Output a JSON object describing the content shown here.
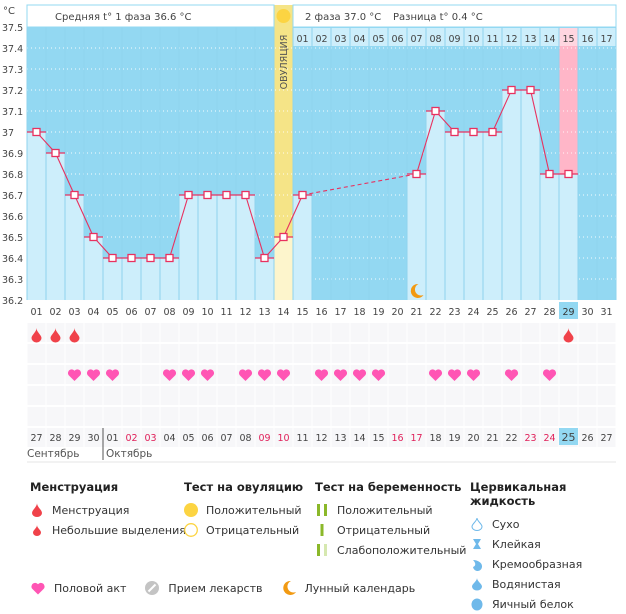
{
  "header": {
    "unit": "°C",
    "phase1_label": "Средняя t° 1 фаза 36.6 °C",
    "phase2_label": "2 фаза 37.0 °C",
    "diff_label": "Разница t° 0.4 °C",
    "ovulation_label": "ОВУЛЯЦИЯ"
  },
  "colors": {
    "background": "#93d8f2",
    "bar_fill": "#cdeefb",
    "line": "#e8315f",
    "ovulation_top": "#f5e487",
    "ovulation_bar": "#fdf5cc",
    "period_highlight": "#ffb6c8",
    "today": "#93d8f2",
    "heart": "#ff55b4",
    "drop": "#f0424a",
    "holiday_text": "#e0215a"
  },
  "chart_data": {
    "type": "line",
    "title": "",
    "xlabel": "",
    "ylabel": "°C",
    "ylim": [
      36.2,
      37.5
    ],
    "yticks": [
      "37.5",
      "37.4",
      "37.3",
      "37.2",
      "37.1",
      "37",
      "36.9",
      "36.8",
      "36.7",
      "36.6",
      "36.5",
      "36.4",
      "36.3",
      "36.2"
    ],
    "cycle_days": [
      "01",
      "02",
      "03",
      "04",
      "05",
      "06",
      "07",
      "08",
      "09",
      "10",
      "11",
      "12",
      "13",
      "14",
      "15",
      "16",
      "17",
      "18",
      "19",
      "20",
      "21",
      "22",
      "23",
      "24",
      "25",
      "26",
      "27",
      "28",
      "29",
      "30",
      "31"
    ],
    "phase2_day_labels": [
      "01",
      "02",
      "03",
      "04",
      "05",
      "06",
      "07",
      "08",
      "09",
      "10",
      "11",
      "12",
      "13",
      "14",
      "15",
      "16",
      "17"
    ],
    "phase2_start_day": 15,
    "phase2_highlight_label": "15",
    "ovulation_day": 14,
    "series": [
      {
        "name": "Базальная температура",
        "values": [
          37.0,
          36.9,
          36.7,
          36.5,
          36.4,
          36.4,
          36.4,
          36.4,
          36.7,
          36.7,
          36.7,
          36.7,
          36.4,
          36.5,
          36.7,
          null,
          null,
          null,
          null,
          null,
          36.8,
          37.1,
          37.0,
          37.0,
          37.0,
          37.2,
          37.2,
          36.8,
          36.8,
          null,
          null
        ]
      }
    ],
    "dashed_gap": [
      15,
      21
    ],
    "period_highlight_day": 29,
    "today_day": 29,
    "moon_day": 21,
    "menstruation_days": [
      1,
      2,
      3,
      29
    ],
    "intercourse_days": [
      3,
      4,
      5,
      8,
      9,
      10,
      12,
      13,
      14,
      16,
      17,
      18,
      19,
      22,
      23,
      24,
      26,
      28
    ],
    "calendar_dates": [
      "27",
      "28",
      "29",
      "30",
      "01",
      "02",
      "03",
      "04",
      "05",
      "06",
      "07",
      "08",
      "09",
      "10",
      "11",
      "12",
      "13",
      "14",
      "15",
      "16",
      "17",
      "18",
      "19",
      "20",
      "21",
      "22",
      "23",
      "24",
      "25",
      "26",
      "27"
    ],
    "weekend_dates_index": [
      5,
      6,
      12,
      13,
      19,
      20,
      26,
      27
    ],
    "months": [
      {
        "label": "Сентябрь",
        "start_index": 1
      },
      {
        "label": "Октябрь",
        "start_index": 5
      }
    ],
    "today_date_index": 29
  },
  "legend": {
    "menstruation": {
      "title": "Менструация",
      "items": [
        "Менструация",
        "Небольшие выделения"
      ]
    },
    "ovulation_test": {
      "title": "Тест на овуляцию",
      "items": [
        "Положительный",
        "Отрицательный"
      ]
    },
    "pregnancy_test": {
      "title": "Тест на беременность",
      "items": [
        "Положительный",
        "Отрицательный",
        "Слабоположительный"
      ]
    },
    "cervical_fluid": {
      "title": "Цервикальная жидкость",
      "items": [
        "Сухо",
        "Клейкая",
        "Кремообразная",
        "Водянистая",
        "Яичный белок"
      ]
    },
    "other": [
      "Половой акт",
      "Прием лекарств",
      "Лунный календарь"
    ]
  }
}
